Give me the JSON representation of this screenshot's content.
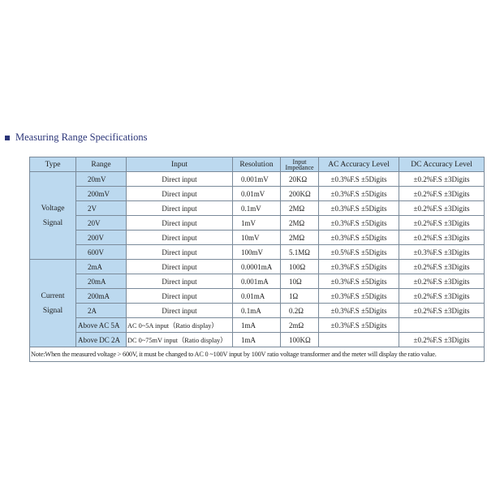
{
  "title": "Measuring Range Specifications",
  "headers": [
    "Type",
    "Range",
    "Input",
    "Resolution",
    "Input Impedance",
    "AC Accuracy Level",
    "DC Accuracy Level"
  ],
  "groups": [
    {
      "type": "Voltage Signal",
      "rows": [
        [
          "20mV",
          "Direct input",
          "0.001mV",
          "20KΩ",
          "±0.3%F.S ±5Digits",
          "±0.2%F.S ±3Digits"
        ],
        [
          "200mV",
          "Direct input",
          "0.01mV",
          "200KΩ",
          "±0.3%F.S ±5Digits",
          "±0.2%F.S ±3Digits"
        ],
        [
          "2V",
          "Direct input",
          "0.1mV",
          "2MΩ",
          "±0.3%F.S ±5Digits",
          "±0.2%F.S ±3Digits"
        ],
        [
          "20V",
          "Direct input",
          "1mV",
          "2MΩ",
          "±0.3%F.S ±5Digits",
          "±0.2%F.S ±3Digits"
        ],
        [
          "200V",
          "Direct input",
          "10mV",
          "2MΩ",
          "±0.3%F.S ±5Digits",
          "±0.2%F.S ±3Digits"
        ],
        [
          "600V",
          "Direct input",
          "100mV",
          "5.1MΩ",
          "±0.5%F.S ±5Digits",
          "±0.3%F.S ±3Digits"
        ]
      ]
    },
    {
      "type": "Current Signal",
      "rows": [
        [
          "2mA",
          "Direct input",
          "0.0001mA",
          "100Ω",
          "±0.3%F.S ±5Digits",
          "±0.2%F.S ±3Digits"
        ],
        [
          "20mA",
          "Direct input",
          "0.001mA",
          "10Ω",
          "±0.3%F.S ±5Digits",
          "±0.2%F.S ±3Digits"
        ],
        [
          "200mA",
          "Direct input",
          "0.01mA",
          "1Ω",
          "±0.3%F.S ±5Digits",
          "±0.2%F.S ±3Digits"
        ],
        [
          "2A",
          "Direct input",
          "0.1mA",
          "0.2Ω",
          "±0.3%F.S ±5Digits",
          "±0.2%F.S ±3Digits"
        ],
        [
          "Above AC 5A",
          "AC 0~5A input（Ratio display）",
          "1mA",
          "2mΩ",
          "±0.3%F.S ±5Digits",
          ""
        ],
        [
          "Above DC 2A",
          "DC 0~75mV input（Ratio display）",
          "1mA",
          "100KΩ",
          "",
          "±0.2%F.S ±3Digits"
        ]
      ]
    }
  ],
  "note": "Note:When the measured voltage > 600V, it must be changed to AC 0 ~100V input by 100V ratio voltage transformer and the meter will display the ratio value."
}
